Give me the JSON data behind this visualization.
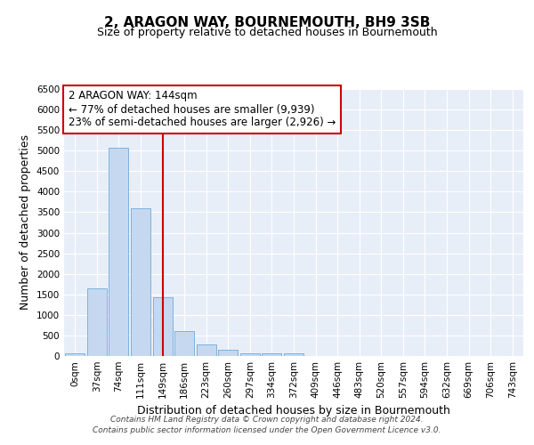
{
  "title": "2, ARAGON WAY, BOURNEMOUTH, BH9 3SB",
  "subtitle": "Size of property relative to detached houses in Bournemouth",
  "xlabel": "Distribution of detached houses by size in Bournemouth",
  "ylabel": "Number of detached properties",
  "bar_color": "#c5d8f0",
  "bar_edge_color": "#5a9fd4",
  "background_color": "#e8eef8",
  "grid_color": "white",
  "categories": [
    "0sqm",
    "37sqm",
    "74sqm",
    "111sqm",
    "149sqm",
    "186sqm",
    "223sqm",
    "260sqm",
    "297sqm",
    "334sqm",
    "372sqm",
    "409sqm",
    "446sqm",
    "483sqm",
    "520sqm",
    "557sqm",
    "594sqm",
    "632sqm",
    "669sqm",
    "706sqm",
    "743sqm"
  ],
  "bar_heights": [
    70,
    1650,
    5080,
    3600,
    1420,
    610,
    290,
    145,
    70,
    55,
    65,
    0,
    0,
    0,
    0,
    0,
    0,
    0,
    0,
    0,
    0
  ],
  "ylim": [
    0,
    6500
  ],
  "yticks": [
    0,
    500,
    1000,
    1500,
    2000,
    2500,
    3000,
    3500,
    4000,
    4500,
    5000,
    5500,
    6000,
    6500
  ],
  "vline_x_index": 4,
  "vline_color": "#cc0000",
  "annotation_text": "2 ARAGON WAY: 144sqm\n← 77% of detached houses are smaller (9,939)\n23% of semi-detached houses are larger (2,926) →",
  "annotation_box_color": "white",
  "annotation_box_edge_color": "#cc0000",
  "footer_line1": "Contains HM Land Registry data © Crown copyright and database right 2024.",
  "footer_line2": "Contains public sector information licensed under the Open Government Licence v3.0.",
  "title_fontsize": 11,
  "subtitle_fontsize": 9,
  "tick_fontsize": 7.5,
  "ylabel_fontsize": 9,
  "xlabel_fontsize": 9,
  "annotation_fontsize": 8.5,
  "footer_fontsize": 6.5
}
